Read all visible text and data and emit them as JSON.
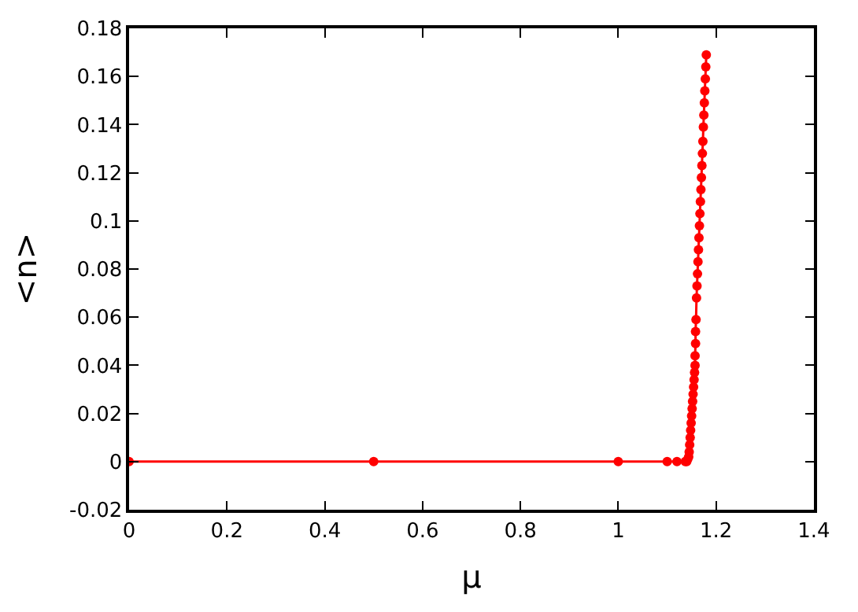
{
  "chart_data": {
    "type": "line",
    "xlabel": "μ",
    "ylabel": "<n>",
    "x": [
      0,
      0.5,
      1,
      1.1,
      1.12,
      1.137,
      1.14,
      1.142,
      1.144,
      1.145,
      1.146,
      1.147,
      1.148,
      1.149,
      1.15,
      1.151,
      1.152,
      1.153,
      1.154,
      1.155,
      1.156,
      1.157,
      1.157,
      1.158,
      1.158,
      1.159,
      1.16,
      1.161,
      1.162,
      1.163,
      1.164,
      1.165,
      1.166,
      1.167,
      1.168,
      1.169,
      1.17,
      1.171,
      1.172,
      1.173,
      1.174,
      1.175,
      1.176,
      1.177,
      1.178,
      1.179,
      1.18
    ],
    "series": [
      {
        "color": "#ff0000",
        "values": [
          0,
          0,
          0,
          0,
          0,
          0,
          0,
          0.001,
          0.002,
          0.004,
          0.007,
          0.01,
          0.013,
          0.016,
          0.019,
          0.022,
          0.025,
          0.028,
          0.031,
          0.034,
          0.037,
          0.04,
          0.044,
          0.049,
          0.054,
          0.059,
          0.068,
          0.073,
          0.078,
          0.083,
          0.088,
          0.093,
          0.098,
          0.103,
          0.108,
          0.113,
          0.118,
          0.123,
          0.128,
          0.133,
          0.139,
          0.144,
          0.149,
          0.154,
          0.159,
          0.164,
          0.169
        ]
      }
    ],
    "xlim": [
      0,
      1.4
    ],
    "xticks": [
      0,
      0.2,
      0.4,
      0.6,
      0.8,
      1,
      1.2,
      1.4
    ],
    "ylim": [
      -0.02,
      0.18
    ],
    "yticks": [
      -0.02,
      0,
      0.02,
      0.04,
      0.06,
      0.08,
      0.1,
      0.12,
      0.14,
      0.16,
      0.18
    ],
    "marker": "circle",
    "line_style": "solid"
  }
}
